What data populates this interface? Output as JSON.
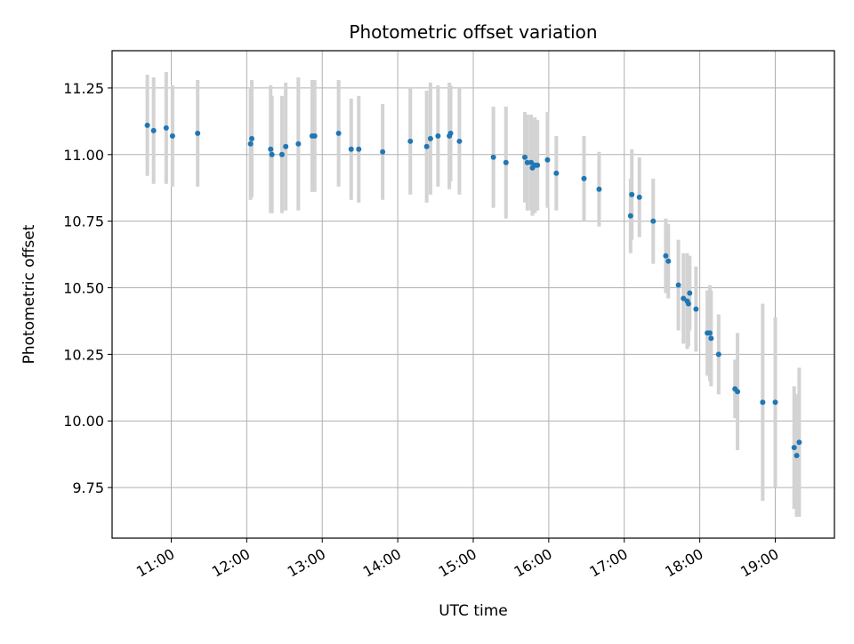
{
  "chart_data": {
    "type": "scatter",
    "title": "Photometric offset variation",
    "xlabel": "UTC time",
    "ylabel": "Photometric offset",
    "xlim": [
      "10:13",
      "19:47"
    ],
    "ylim": [
      9.56,
      11.39
    ],
    "grid": true,
    "x_ticks": [
      "11:00",
      "12:00",
      "13:00",
      "14:00",
      "15:00",
      "16:00",
      "17:00",
      "18:00",
      "19:00"
    ],
    "y_ticks": [
      "9.75",
      "10.00",
      "10.25",
      "10.50",
      "10.75",
      "11.00",
      "11.25"
    ],
    "colors": {
      "point": "#1f77b4",
      "errorbar": "#d3d3d3",
      "grid": "#b0b0b0"
    },
    "series": [
      {
        "x": [
          "10:41",
          "10:46",
          "10:56",
          "11:01",
          "11:21",
          "12:03",
          "12:04",
          "12:19",
          "12:20",
          "12:28",
          "12:31",
          "12:41",
          "12:52",
          "12:54",
          "13:13",
          "13:23",
          "13:29",
          "13:48",
          "14:10",
          "14:23",
          "14:26",
          "14:32",
          "14:41",
          "14:42",
          "14:49",
          "15:16",
          "15:26",
          "15:41",
          "15:43",
          "15:46",
          "15:47",
          "15:49",
          "15:51",
          "15:59",
          "16:06",
          "16:28",
          "16:40",
          "17:05",
          "17:06",
          "17:12",
          "17:23",
          "17:33",
          "17:35",
          "17:43",
          "17:47",
          "17:50",
          "17:51",
          "17:52",
          "17:57",
          "18:06",
          "18:08",
          "18:09",
          "18:15",
          "18:28",
          "18:30",
          "18:50",
          "19:00",
          "19:15",
          "19:17",
          "19:19"
        ],
        "y": [
          11.11,
          11.09,
          11.1,
          11.07,
          11.08,
          11.04,
          11.06,
          11.02,
          11.0,
          11.0,
          11.03,
          11.04,
          11.07,
          11.07,
          11.08,
          11.02,
          11.02,
          11.01,
          11.05,
          11.03,
          11.06,
          11.07,
          11.07,
          11.08,
          11.05,
          10.99,
          10.97,
          10.99,
          10.97,
          10.97,
          10.95,
          10.96,
          10.96,
          10.98,
          10.93,
          10.91,
          10.87,
          10.77,
          10.85,
          10.84,
          10.75,
          10.62,
          10.6,
          10.51,
          10.46,
          10.45,
          10.44,
          10.48,
          10.42,
          10.33,
          10.33,
          10.31,
          10.25,
          10.12,
          10.11,
          10.07,
          10.07,
          9.9,
          9.87,
          9.92
        ],
        "yerr": [
          0.19,
          0.2,
          0.21,
          0.19,
          0.2,
          0.21,
          0.22,
          0.24,
          0.22,
          0.22,
          0.24,
          0.25,
          0.21,
          0.21,
          0.2,
          0.19,
          0.2,
          0.18,
          0.2,
          0.21,
          0.21,
          0.19,
          0.2,
          0.18,
          0.2,
          0.19,
          0.21,
          0.17,
          0.18,
          0.18,
          0.18,
          0.18,
          0.17,
          0.18,
          0.14,
          0.16,
          0.14,
          0.14,
          0.17,
          0.15,
          0.16,
          0.14,
          0.14,
          0.17,
          0.17,
          0.18,
          0.16,
          0.14,
          0.16,
          0.16,
          0.18,
          0.18,
          0.15,
          0.11,
          0.22,
          0.37,
          0.32,
          0.23,
          0.23,
          0.28
        ]
      }
    ]
  }
}
